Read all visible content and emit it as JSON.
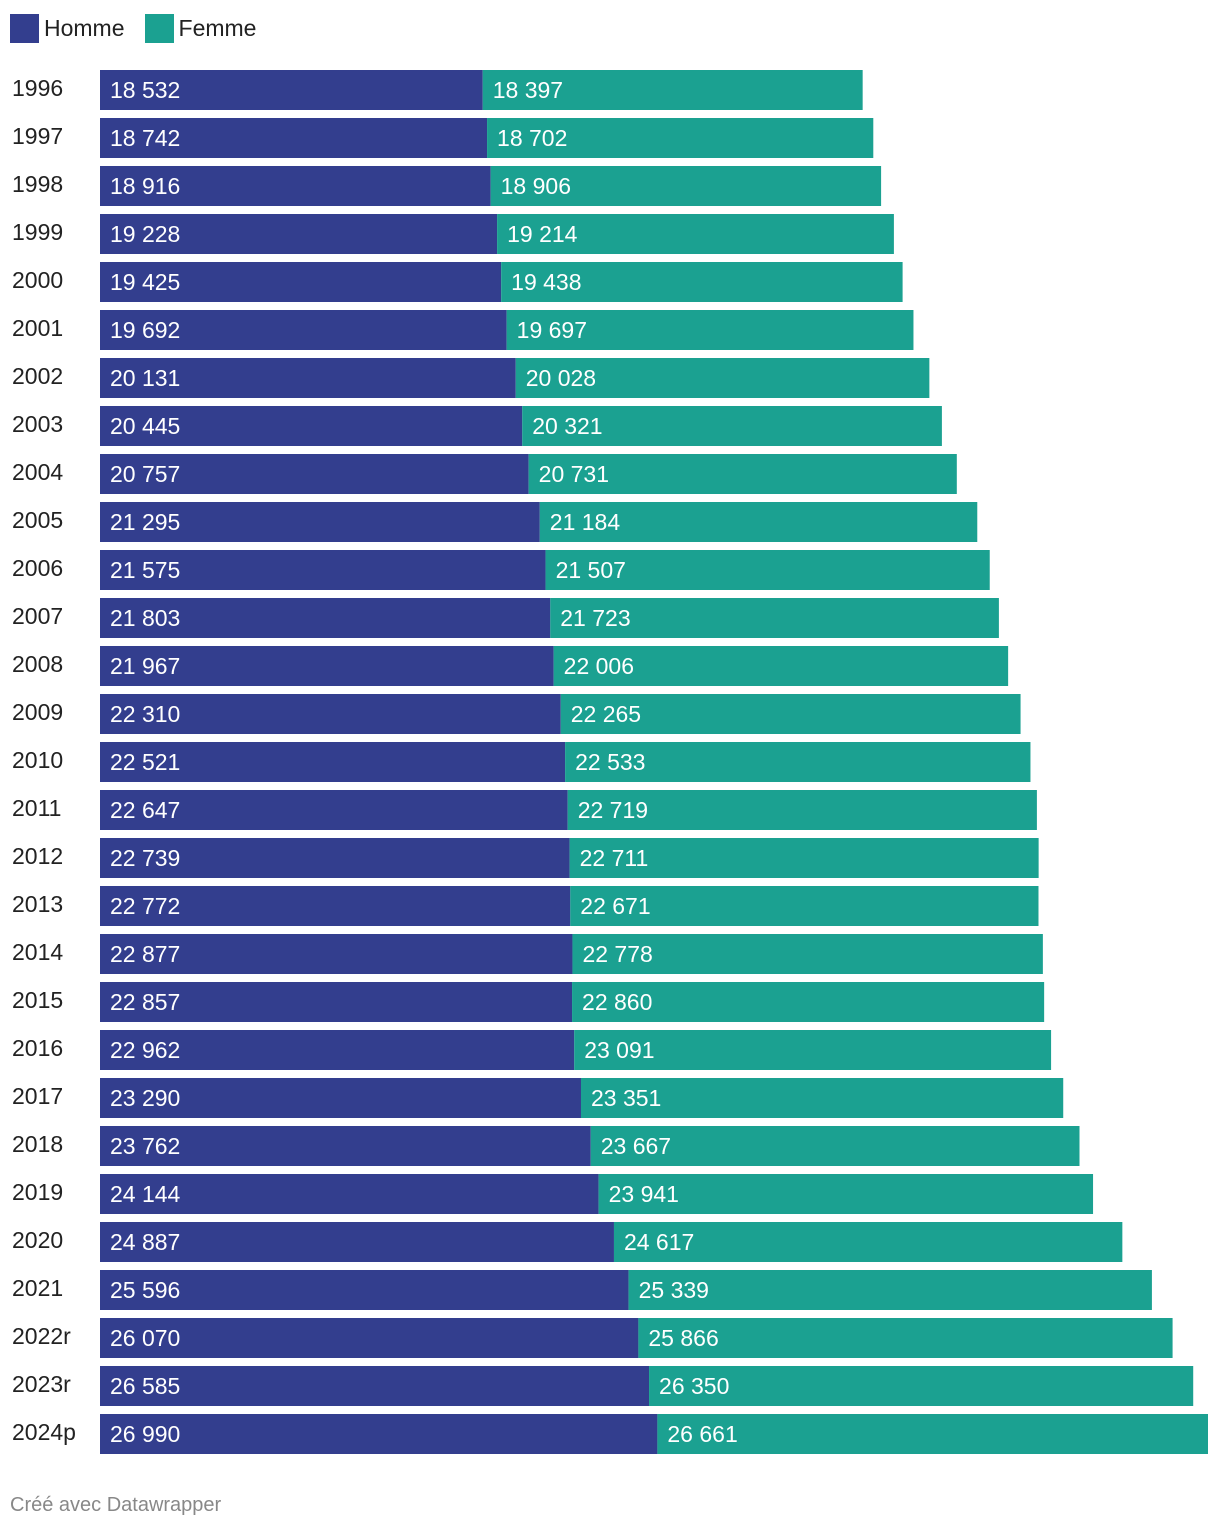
{
  "colors": {
    "homme": "#333e8e",
    "femme": "#1ba191"
  },
  "legend": {
    "homme": "Homme",
    "femme": "Femme"
  },
  "credit": "Créé avec Datawrapper",
  "chart_data": {
    "type": "bar",
    "orientation": "horizontal",
    "stacked": true,
    "legend_position": "top-left",
    "grid": false,
    "categories": [
      "1996",
      "1997",
      "1998",
      "1999",
      "2000",
      "2001",
      "2002",
      "2003",
      "2004",
      "2005",
      "2006",
      "2007",
      "2008",
      "2009",
      "2010",
      "2011",
      "2012",
      "2013",
      "2014",
      "2015",
      "2016",
      "2017",
      "2018",
      "2019",
      "2020",
      "2021",
      "2022r",
      "2023r",
      "2024p"
    ],
    "series": [
      {
        "name": "Homme",
        "values": [
          18532,
          18742,
          18916,
          19228,
          19425,
          19692,
          20131,
          20445,
          20757,
          21295,
          21575,
          21803,
          21967,
          22310,
          22521,
          22647,
          22739,
          22772,
          22877,
          22857,
          22962,
          23290,
          23762,
          24144,
          24887,
          25596,
          26070,
          26585,
          26990
        ],
        "labels": [
          "18 532",
          "18 742",
          "18 916",
          "19 228",
          "19 425",
          "19 692",
          "20 131",
          "20 445",
          "20 757",
          "21 295",
          "21 575",
          "21 803",
          "21 967",
          "22 310",
          "22 521",
          "22 647",
          "22 739",
          "22 772",
          "22 877",
          "22 857",
          "22 962",
          "23 290",
          "23 762",
          "24 144",
          "24 887",
          "25 596",
          "26 070",
          "26 585",
          "26 990"
        ]
      },
      {
        "name": "Femme",
        "values": [
          18397,
          18702,
          18906,
          19214,
          19438,
          19697,
          20028,
          20321,
          20731,
          21184,
          21507,
          21723,
          22006,
          22265,
          22533,
          22719,
          22711,
          22671,
          22778,
          22860,
          23091,
          23351,
          23667,
          23941,
          24617,
          25339,
          25866,
          26350,
          26661
        ],
        "labels": [
          "18 397",
          "18 702",
          "18 906",
          "19 214",
          "19 438",
          "19 697",
          "20 028",
          "20 321",
          "20 731",
          "21 184",
          "21 507",
          "21 723",
          "22 006",
          "22 265",
          "22 533",
          "22 719",
          "22 711",
          "22 671",
          "22 778",
          "22 860",
          "23 091",
          "23 351",
          "23 667",
          "23 941",
          "24 617",
          "25 339",
          "25 866",
          "26 350",
          "26 661"
        ]
      }
    ],
    "xlim": [
      0,
      53651
    ]
  }
}
